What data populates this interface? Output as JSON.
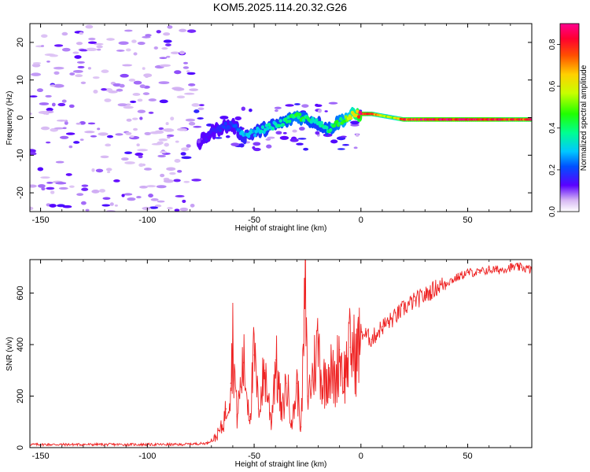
{
  "title": "KOM5.2025.114.20.32.G26",
  "chart_data": [
    {
      "type": "heatmap",
      "xlabel": "Height of straight line (km)",
      "ylabel": "Frequency (Hz)",
      "xlim": [
        -155,
        80
      ],
      "ylim": [
        -25,
        25
      ],
      "x_ticks": [
        -150,
        -100,
        -50,
        0,
        50
      ],
      "y_ticks": [
        -20,
        -10,
        0,
        10,
        20
      ],
      "x_tick_labels": [
        "-150",
        "-100",
        "-50",
        "0",
        "50"
      ],
      "y_tick_labels": [
        "-20",
        "-10",
        "0",
        "10",
        "20"
      ],
      "colorbar": {
        "label": "Normalized spectral amplitude",
        "range": [
          0,
          0.9
        ],
        "ticks": [
          0.0,
          0.2,
          0.4,
          0.6,
          0.8
        ],
        "tick_labels": [
          "0.0",
          "0.2",
          "0.4",
          "0.6",
          "0.8"
        ]
      },
      "ridge": {
        "x": [
          -76,
          -70,
          -65,
          -60,
          -55,
          -50,
          -45,
          -40,
          -35,
          -30,
          -25,
          -20,
          -15,
          -10,
          -5,
          0,
          5,
          10,
          15,
          20,
          30,
          40,
          50,
          60,
          70,
          80
        ],
        "freq": [
          -7,
          -4,
          -2.5,
          -2,
          -5,
          -4,
          -3,
          -2,
          -1,
          0.5,
          -0.5,
          -1.5,
          -3,
          -1,
          0.5,
          1,
          1,
          0.5,
          0,
          -0.5,
          -0.5,
          -0.5,
          -0.5,
          -0.5,
          -0.5,
          -0.5
        ],
        "amp": [
          0.1,
          0.15,
          0.2,
          0.2,
          0.3,
          0.3,
          0.35,
          0.35,
          0.4,
          0.45,
          0.4,
          0.35,
          0.4,
          0.45,
          0.55,
          0.85,
          0.75,
          0.6,
          0.55,
          0.8,
          0.85,
          0.85,
          0.85,
          0.85,
          0.8,
          0.8
        ]
      },
      "noise_region": "below -78 km",
      "grid": false
    },
    {
      "type": "line",
      "xlabel": "Height of straight line (km)",
      "ylabel": "SNR (v/v)",
      "xlim": [
        -155,
        80
      ],
      "ylim": [
        0,
        730
      ],
      "x_ticks": [
        -150,
        -100,
        -50,
        0,
        50
      ],
      "y_ticks": [
        0,
        200,
        400,
        600
      ],
      "x_tick_labels": [
        "-150",
        "-100",
        "-50",
        "0",
        "50"
      ],
      "y_tick_labels": [
        "0",
        "200",
        "400",
        "600"
      ],
      "line_color": "#ee2222",
      "x": [
        -155,
        -140,
        -120,
        -100,
        -85,
        -72,
        -68,
        -65,
        -63,
        -61,
        -60,
        -58,
        -55,
        -52,
        -50,
        -48,
        -45,
        -42,
        -40,
        -37,
        -35,
        -32,
        -30,
        -28,
        -26,
        -25,
        -23,
        -20,
        -18,
        -15,
        -12,
        -10,
        -8,
        -5,
        -2,
        0,
        5,
        10,
        15,
        20,
        25,
        30,
        35,
        40,
        45,
        50,
        55,
        60,
        65,
        70,
        75,
        80
      ],
      "y": [
        10,
        10,
        10,
        10,
        10,
        15,
        40,
        80,
        150,
        250,
        420,
        120,
        330,
        120,
        360,
        150,
        300,
        100,
        340,
        120,
        250,
        100,
        250,
        80,
        610,
        200,
        260,
        410,
        240,
        310,
        250,
        380,
        270,
        390,
        350,
        450,
        420,
        470,
        500,
        540,
        570,
        590,
        620,
        640,
        660,
        680,
        680,
        690,
        690,
        700,
        700,
        690
      ],
      "grid": false
    }
  ]
}
